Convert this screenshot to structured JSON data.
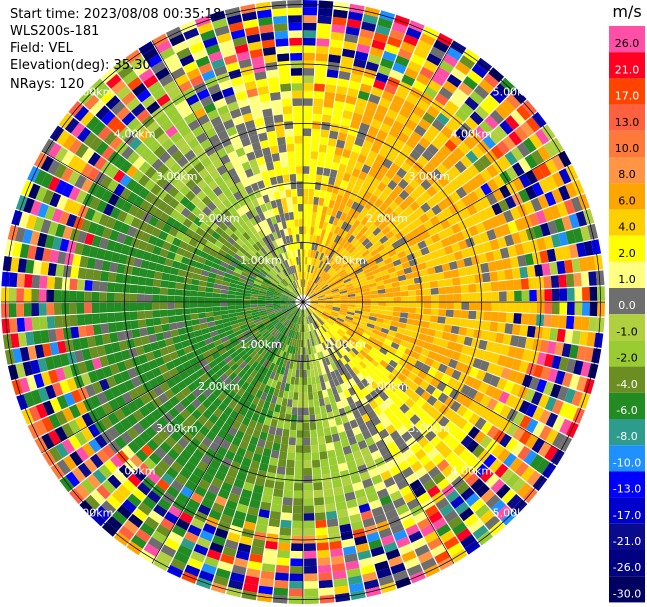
{
  "info": {
    "start_time": "Start time: 2023/08/08 00:35:18",
    "site": "WLS200s-181",
    "field": "Field: VEL",
    "elevation": "Elevation(deg): 35.30",
    "nrays": "NRays: 120"
  },
  "range_rings": [
    {
      "label": "1.00km"
    },
    {
      "label": "2.00km"
    },
    {
      "label": "3.00km"
    },
    {
      "label": "4.00km"
    },
    {
      "label": "5.00km"
    }
  ],
  "colorbar": {
    "unit": "m/s",
    "levels": [
      {
        "label": "26.0",
        "color": "#ff4fa6"
      },
      {
        "label": "21.0",
        "color": "#ff0022"
      },
      {
        "label": "17.0",
        "color": "#ff4400"
      },
      {
        "label": "13.0",
        "color": "#ff6040"
      },
      {
        "label": "10.0",
        "color": "#ff7a3a"
      },
      {
        "label": "8.0",
        "color": "#ff9545"
      },
      {
        "label": "6.0",
        "color": "#ffa500"
      },
      {
        "label": "4.0",
        "color": "#ffd000"
      },
      {
        "label": "2.0",
        "color": "#ffff00"
      },
      {
        "label": "1.0",
        "color": "#ffff80"
      },
      {
        "label": "0.0",
        "color": "#6e6e6e"
      },
      {
        "label": "-1.0",
        "color": "#b0d040"
      },
      {
        "label": "-2.0",
        "color": "#99cc33"
      },
      {
        "label": "-4.0",
        "color": "#6b8e23"
      },
      {
        "label": "-6.0",
        "color": "#228b22"
      },
      {
        "label": "-8.0",
        "color": "#2e9c8c"
      },
      {
        "label": "-10.0",
        "color": "#1e90ff"
      },
      {
        "label": "-13.0",
        "color": "#0000ff"
      },
      {
        "label": "-17.0",
        "color": "#0000cd"
      },
      {
        "label": "-21.0",
        "color": "#0a0a8c"
      },
      {
        "label": "-26.0",
        "color": "#000080"
      },
      {
        "label": "-30.0",
        "color": "#000060"
      }
    ]
  }
}
